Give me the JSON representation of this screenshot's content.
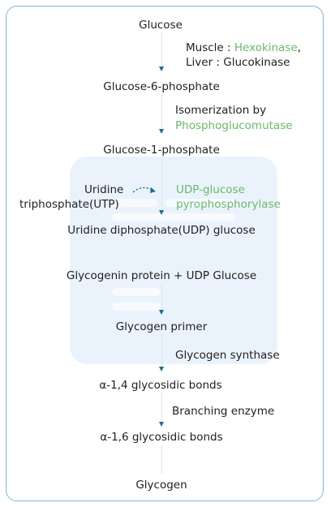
{
  "steps": {
    "glucose": "Glucose",
    "g6p": "Glucose-6-phosphate",
    "g1p": "Glucose-1-phosphate",
    "udp_glucose": "Uridine diphosphate(UDP) glucose",
    "glycogenin": "Glycogenin protein + UDP Glucose",
    "primer": "Glycogen primer",
    "a14": "α-1,4 glycosidic bonds",
    "a16": "α-1,6 glycosidic bonds",
    "glycogen": "Glycogen"
  },
  "enzymes": {
    "step1": {
      "muscle_label": "Muscle : ",
      "muscle_enzyme": "Hexokinase",
      "muscle_suffix": ",",
      "liver": "Liver : Glucokinase"
    },
    "step2": {
      "line1": "Isomerization by",
      "enzyme": "Phosphoglucomutase"
    },
    "step3": {
      "left_line1": "Uridine",
      "left_line2": "triphosphate(UTP)",
      "enzyme_line1": "UDP-glucose",
      "enzyme_line2": "pyrophosphorylase"
    },
    "step5": "Glycogen synthase",
    "step6": "Branching enzyme"
  },
  "colors": {
    "enzyme_green": "#6bb86b",
    "arrow": "#1b6d8e",
    "border": "#7fb5d8"
  }
}
